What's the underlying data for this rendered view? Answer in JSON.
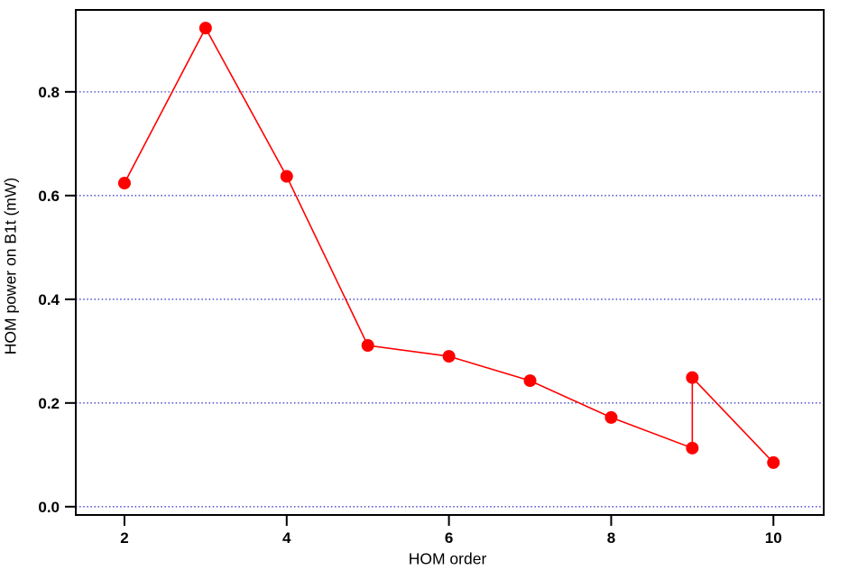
{
  "chart_data": {
    "type": "line",
    "title": "",
    "xlabel": "HOM order",
    "ylabel": "HOM power on B1t (mW)",
    "x": [
      2,
      3,
      4,
      5,
      6,
      7,
      8,
      9,
      9,
      10
    ],
    "y": [
      0.624,
      0.923,
      0.637,
      0.311,
      0.29,
      0.243,
      0.172,
      0.113,
      0.249,
      0.085
    ],
    "xlim": [
      1.4,
      10.62
    ],
    "ylim": [
      -0.016,
      0.958
    ],
    "x_ticks": [
      2,
      4,
      6,
      8,
      10
    ],
    "x_tick_labels": [
      "2",
      "4",
      "6",
      "8",
      "10"
    ],
    "y_ticks": [
      0.0,
      0.2,
      0.4,
      0.6,
      0.8
    ],
    "y_tick_labels": [
      "0.0",
      "0.2",
      "0.4",
      "0.6",
      "0.8"
    ],
    "grid": "horizontal-dotted",
    "legend_position": "none",
    "colors": {
      "line": "#ff0000",
      "marker": "#ff0000",
      "gridline": "#3e3ec9",
      "axis": "#000000",
      "background": "#ffffff",
      "text": "#000000"
    },
    "marker_style": "filled-circle"
  }
}
